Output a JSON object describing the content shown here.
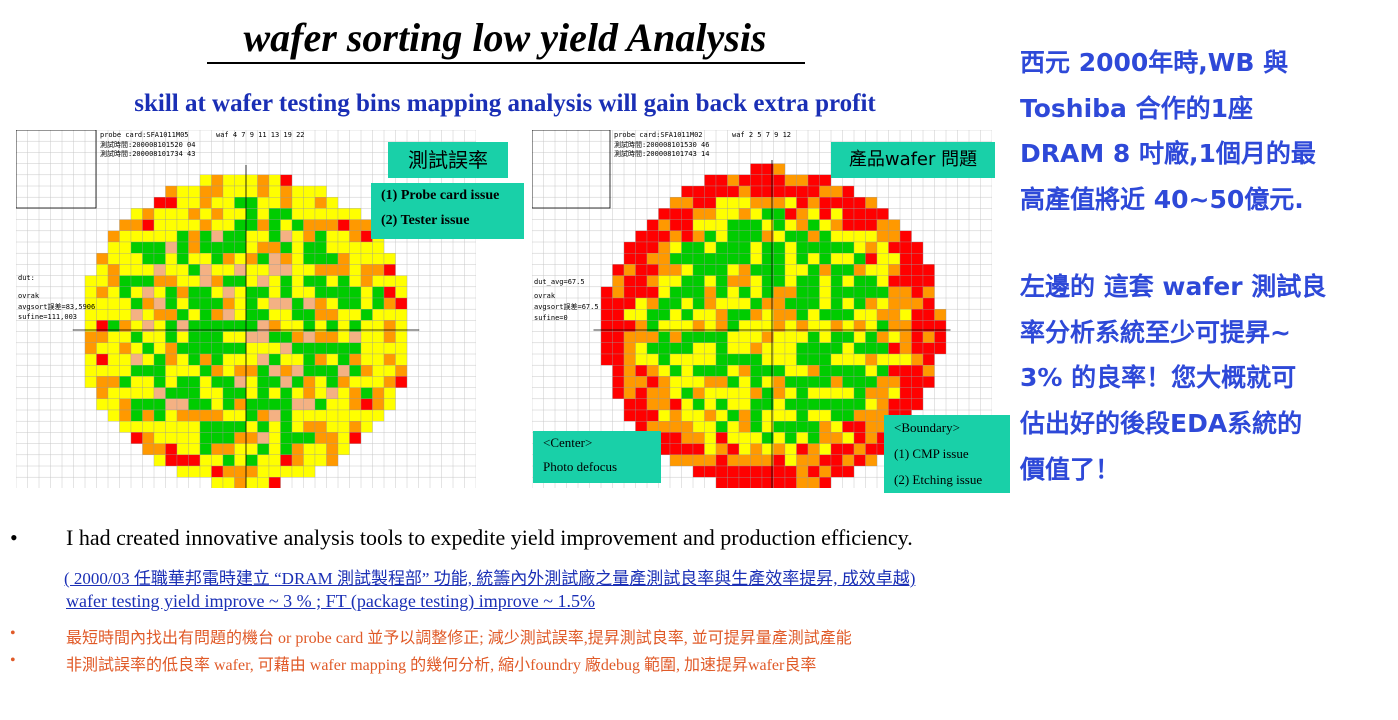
{
  "title": "wafer sorting low yield Analysis",
  "subtitle": "skill at wafer testing bins mapping analysis will gain back extra profit",
  "left_map": {
    "header_text": "probe card:SFA1011M05",
    "header_2": "測試時間:200008101520 04",
    "header_3": "測試時間:200008101734 43",
    "waf_row": "waf   4   7   9   11  13  19  22",
    "side_stats": [
      "dut:",
      "ovrak",
      "avgsort誤差=83,5906",
      "sufine=111,003"
    ],
    "label": "測試誤率",
    "issues": [
      "(1) Probe card issue",
      "(2) Tester issue"
    ]
  },
  "right_map": {
    "header_text": "probe card:SFA1011M02",
    "header_2": "測試時間:200008101530 46",
    "header_3": "測試時間:200008101743 14",
    "waf_row": "waf   2   5   7   9   12",
    "side_stats": [
      "dut_avg=67.5",
      "ovrak",
      "avgsort誤差=67.5",
      "sufine=0"
    ],
    "label": "產品wafer 問題",
    "center_box": [
      "<Center>",
      "Photo defocus"
    ],
    "boundary_box": [
      "<Boundary>",
      "(1) CMP issue",
      "(2) Etching issue"
    ]
  },
  "sidebar": {
    "lines": [
      "西元 2000年時,WB 與",
      "Toshiba 合作的1座",
      "DRAM 8 吋廠,1個月的最",
      "高產值將近 40~50億元.",
      "左邊的 這套 wafer 測試良",
      "率分析系統至少可提昇~",
      "3% 的良率！您大概就可",
      "估出好的後段EDA系統的",
      "價值了！"
    ]
  },
  "bullets": {
    "main": "I had created innovative analysis tools to expedite yield improvement and production efficiency.",
    "note": "( 2000/03 任職華邦電時建立 “DRAM 測試製程部”  功能, 統籌內外測試廠之量產測試良率與生產效率提昇, 成效卓越)",
    "improve": "wafer  testing yield  improve ~ 3 %  ;  FT (package testing)  improve ~ 1.5%",
    "red1": "最短時間內找出有問題的機台   or probe card 並予以調整修正;  減少測試誤率,提昇測試良率,  並可提昇量產測試產能",
    "red2": "非測試誤率的低良率  wafer,  可藉由 wafer mapping  的幾何分析,  縮小foundry  廠debug  範圍, 加速提昇wafer良率",
    "dot": "•"
  },
  "colors": {
    "title": "#000000",
    "subtitle_blue": "#1a2fb5",
    "sidebar_blue": "#2e49d8",
    "note_red": "#e05a28",
    "teal": "#19d0a8",
    "bin_red": "#ff0000",
    "bin_orange": "#ff9900",
    "bin_yellow": "#ffff00",
    "bin_green": "#00cc00",
    "bin_salmon": "#f4b183"
  }
}
